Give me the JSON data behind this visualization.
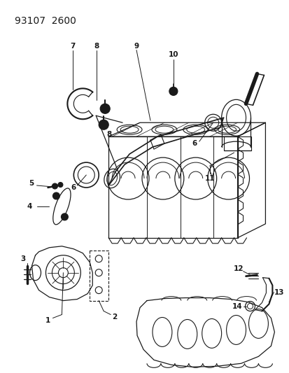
{
  "title": "93107  2600",
  "bg": "#ffffff",
  "lc": "#1a1a1a",
  "fig_w": 4.14,
  "fig_h": 5.33,
  "dpi": 100
}
